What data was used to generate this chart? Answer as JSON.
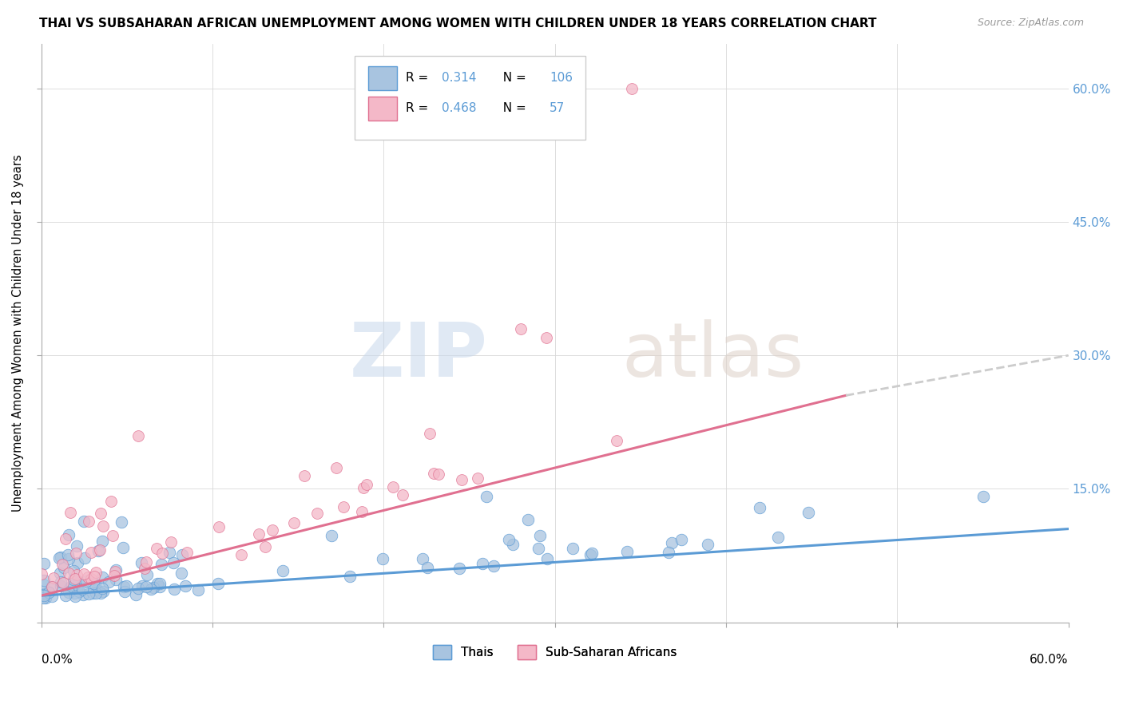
{
  "title": "THAI VS SUBSAHARAN AFRICAN UNEMPLOYMENT AMONG WOMEN WITH CHILDREN UNDER 18 YEARS CORRELATION CHART",
  "source": "Source: ZipAtlas.com",
  "ylabel": "Unemployment Among Women with Children Under 18 years",
  "xmin": 0.0,
  "xmax": 0.6,
  "ymin": 0.0,
  "ymax": 0.65,
  "yticks": [
    0.0,
    0.15,
    0.3,
    0.45,
    0.6
  ],
  "ytick_labels": [
    "",
    "15.0%",
    "30.0%",
    "45.0%",
    "60.0%"
  ],
  "thai_color": "#a8c4e0",
  "thai_color_dark": "#5b9bd5",
  "ssa_color": "#f4b8c8",
  "ssa_color_dark": "#e07090",
  "thai_R": 0.314,
  "thai_N": 106,
  "ssa_R": 0.468,
  "ssa_N": 57,
  "background_color": "#ffffff",
  "grid_color": "#d8d8d8",
  "axis_color": "#aaaaaa",
  "thai_line_start_y": 0.03,
  "thai_line_end_y": 0.105,
  "ssa_line_start_y": 0.03,
  "ssa_line_solid_end_x": 0.47,
  "ssa_line_solid_end_y": 0.255,
  "ssa_line_dash_end_x": 0.6,
  "ssa_line_dash_end_y": 0.3,
  "dash_color": "#cccccc"
}
